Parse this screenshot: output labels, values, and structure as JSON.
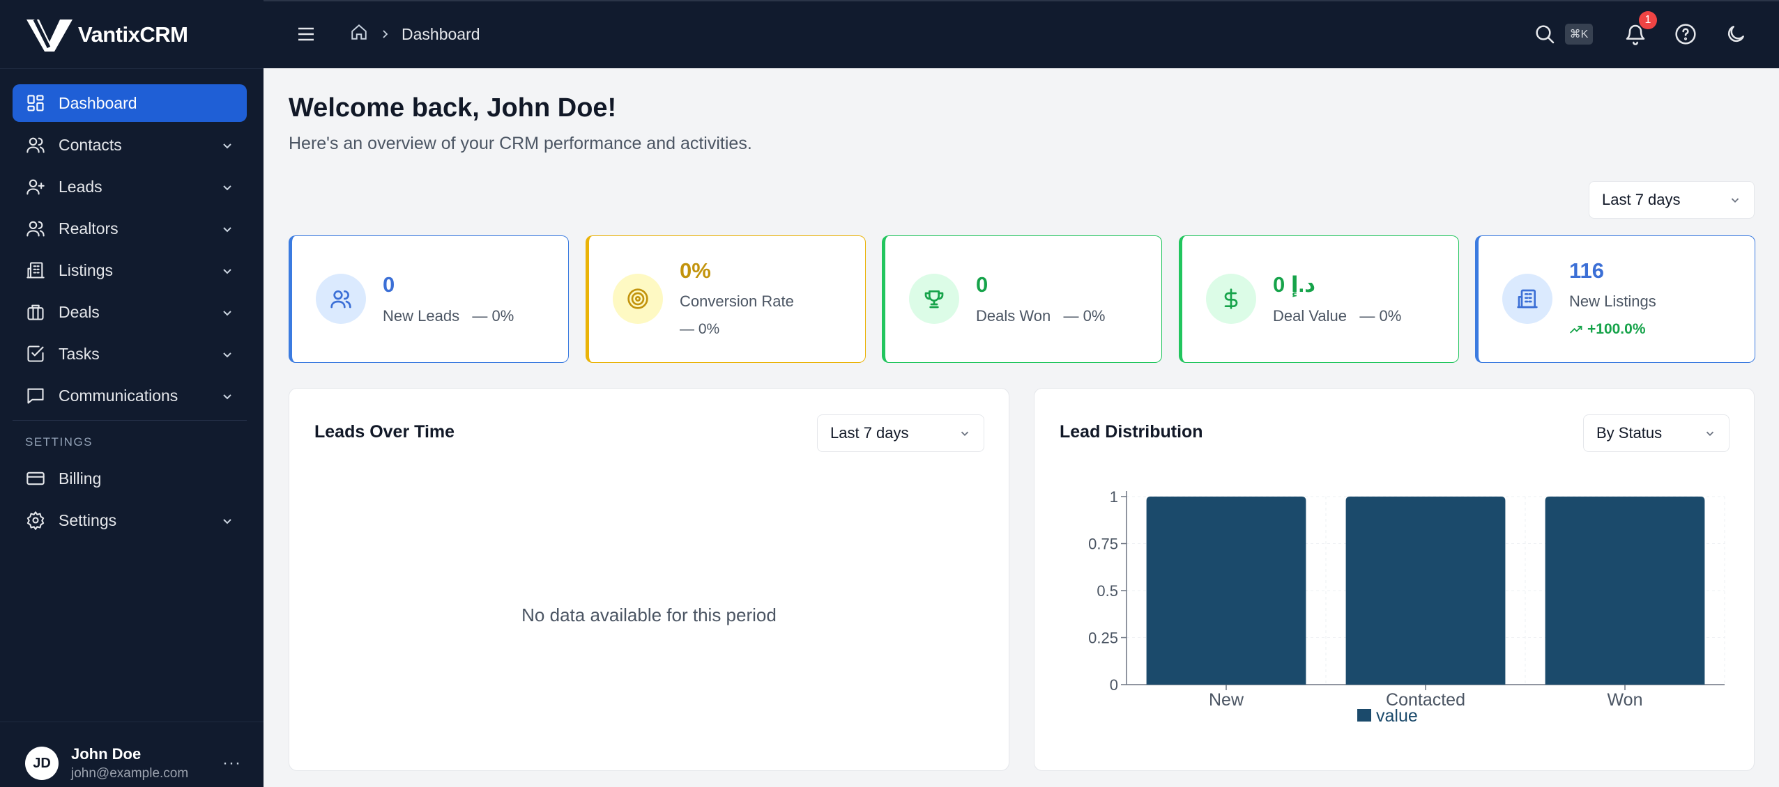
{
  "app": {
    "name": "VantixCRM"
  },
  "sidebar": {
    "items": [
      {
        "label": "Dashboard",
        "icon": "dashboard-icon",
        "active": true,
        "expandable": false
      },
      {
        "label": "Contacts",
        "icon": "users-icon",
        "active": false,
        "expandable": true
      },
      {
        "label": "Leads",
        "icon": "user-plus-icon",
        "active": false,
        "expandable": true
      },
      {
        "label": "Realtors",
        "icon": "users-icon",
        "active": false,
        "expandable": true
      },
      {
        "label": "Listings",
        "icon": "building-icon",
        "active": false,
        "expandable": true
      },
      {
        "label": "Deals",
        "icon": "briefcase-icon",
        "active": false,
        "expandable": true
      },
      {
        "label": "Tasks",
        "icon": "checkbox-icon",
        "active": false,
        "expandable": true
      },
      {
        "label": "Communications",
        "icon": "message-icon",
        "active": false,
        "expandable": true
      }
    ],
    "settings_heading": "SETTINGS",
    "settings_items": [
      {
        "label": "Billing",
        "icon": "credit-card-icon",
        "expandable": false
      },
      {
        "label": "Settings",
        "icon": "gear-icon",
        "expandable": true
      }
    ],
    "user": {
      "initials": "JD",
      "name": "John Doe",
      "email": "john@example.com",
      "more": "···"
    }
  },
  "topbar": {
    "breadcrumb": "Dashboard",
    "search_shortcut": "⌘K",
    "notification_count": "1"
  },
  "main": {
    "welcome": "Welcome back, John Doe!",
    "subtitle": "Here's an overview of your CRM performance and activities.",
    "period_select": "Last 7 days"
  },
  "stats": [
    {
      "value": "0",
      "label": "New Leads",
      "change": "— 0%",
      "color": "#3b7be0",
      "accent": "#3b6fd6",
      "bg": "#dbeafe",
      "icon": "users-icon"
    },
    {
      "value": "0%",
      "label": "Conversion Rate",
      "change": "— 0%",
      "color": "#eab308",
      "accent": "#c2930c",
      "bg": "#fef9c3",
      "icon": "target-icon"
    },
    {
      "value": "0",
      "label": "Deals Won",
      "change": "— 0%",
      "color": "#22c55e",
      "accent": "#16a34a",
      "bg": "#dcfce7",
      "icon": "trophy-icon"
    },
    {
      "value": "0 د.إ",
      "label": "Deal Value",
      "change": "— 0%",
      "color": "#22c55e",
      "accent": "#16a34a",
      "bg": "#dcfce7",
      "icon": "dollar-icon"
    },
    {
      "value": "116",
      "label": "New Listings",
      "change": "+100.0%",
      "color": "#3b7be0",
      "accent": "#3b6fd6",
      "bg": "#dbeafe",
      "icon": "building-icon"
    }
  ],
  "leads_over_time": {
    "title": "Leads Over Time",
    "select": "Last 7 days",
    "empty_message": "No data available for this period"
  },
  "lead_distribution": {
    "title": "Lead Distribution",
    "select": "By Status"
  },
  "chart_data": {
    "type": "bar",
    "categories": [
      "New",
      "Contacted",
      "Won"
    ],
    "series": [
      {
        "name": "value",
        "values": [
          1,
          1,
          1
        ],
        "color": "#1b4a6b"
      }
    ],
    "ylim": [
      0,
      1
    ],
    "yticks": [
      "0",
      "0.25",
      "0.5",
      "0.75",
      "1"
    ],
    "legend": "bottom",
    "grid": true
  }
}
